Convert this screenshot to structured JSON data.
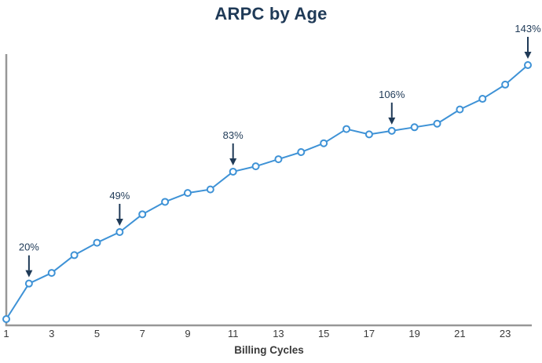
{
  "chart_data": {
    "type": "line",
    "title": "ARPC by Age",
    "xlabel": "Billing Cycles",
    "ylabel": "",
    "x": [
      1,
      2,
      3,
      4,
      5,
      6,
      7,
      8,
      9,
      10,
      11,
      12,
      13,
      14,
      15,
      16,
      17,
      18,
      19,
      20,
      21,
      22,
      23,
      24
    ],
    "values": [
      0,
      20,
      26,
      36,
      43,
      49,
      59,
      66,
      71,
      73,
      83,
      86,
      90,
      94,
      99,
      107,
      104,
      106,
      108,
      110,
      118,
      124,
      132,
      143
    ],
    "x_tick_labels": [
      "1",
      "3",
      "5",
      "7",
      "9",
      "11",
      "13",
      "15",
      "17",
      "19",
      "21",
      "23"
    ],
    "x_ticks": [
      1,
      3,
      5,
      7,
      9,
      11,
      13,
      15,
      17,
      19,
      21,
      23
    ],
    "xlim": [
      1,
      24
    ],
    "ylim": [
      0,
      150
    ],
    "grid": false,
    "legend": false,
    "marker": "open-circle",
    "annotations": [
      {
        "x": 2,
        "label": "20%"
      },
      {
        "x": 6,
        "label": "49%"
      },
      {
        "x": 11,
        "label": "83%"
      },
      {
        "x": 18,
        "label": "106%"
      },
      {
        "x": 24,
        "label": "143%"
      }
    ],
    "colors": {
      "line": "#3e92d6",
      "marker_fill": "#ffffff",
      "navy": "#1f3a57",
      "axis": "#979797",
      "tick_label": "#3a3a3a"
    }
  }
}
